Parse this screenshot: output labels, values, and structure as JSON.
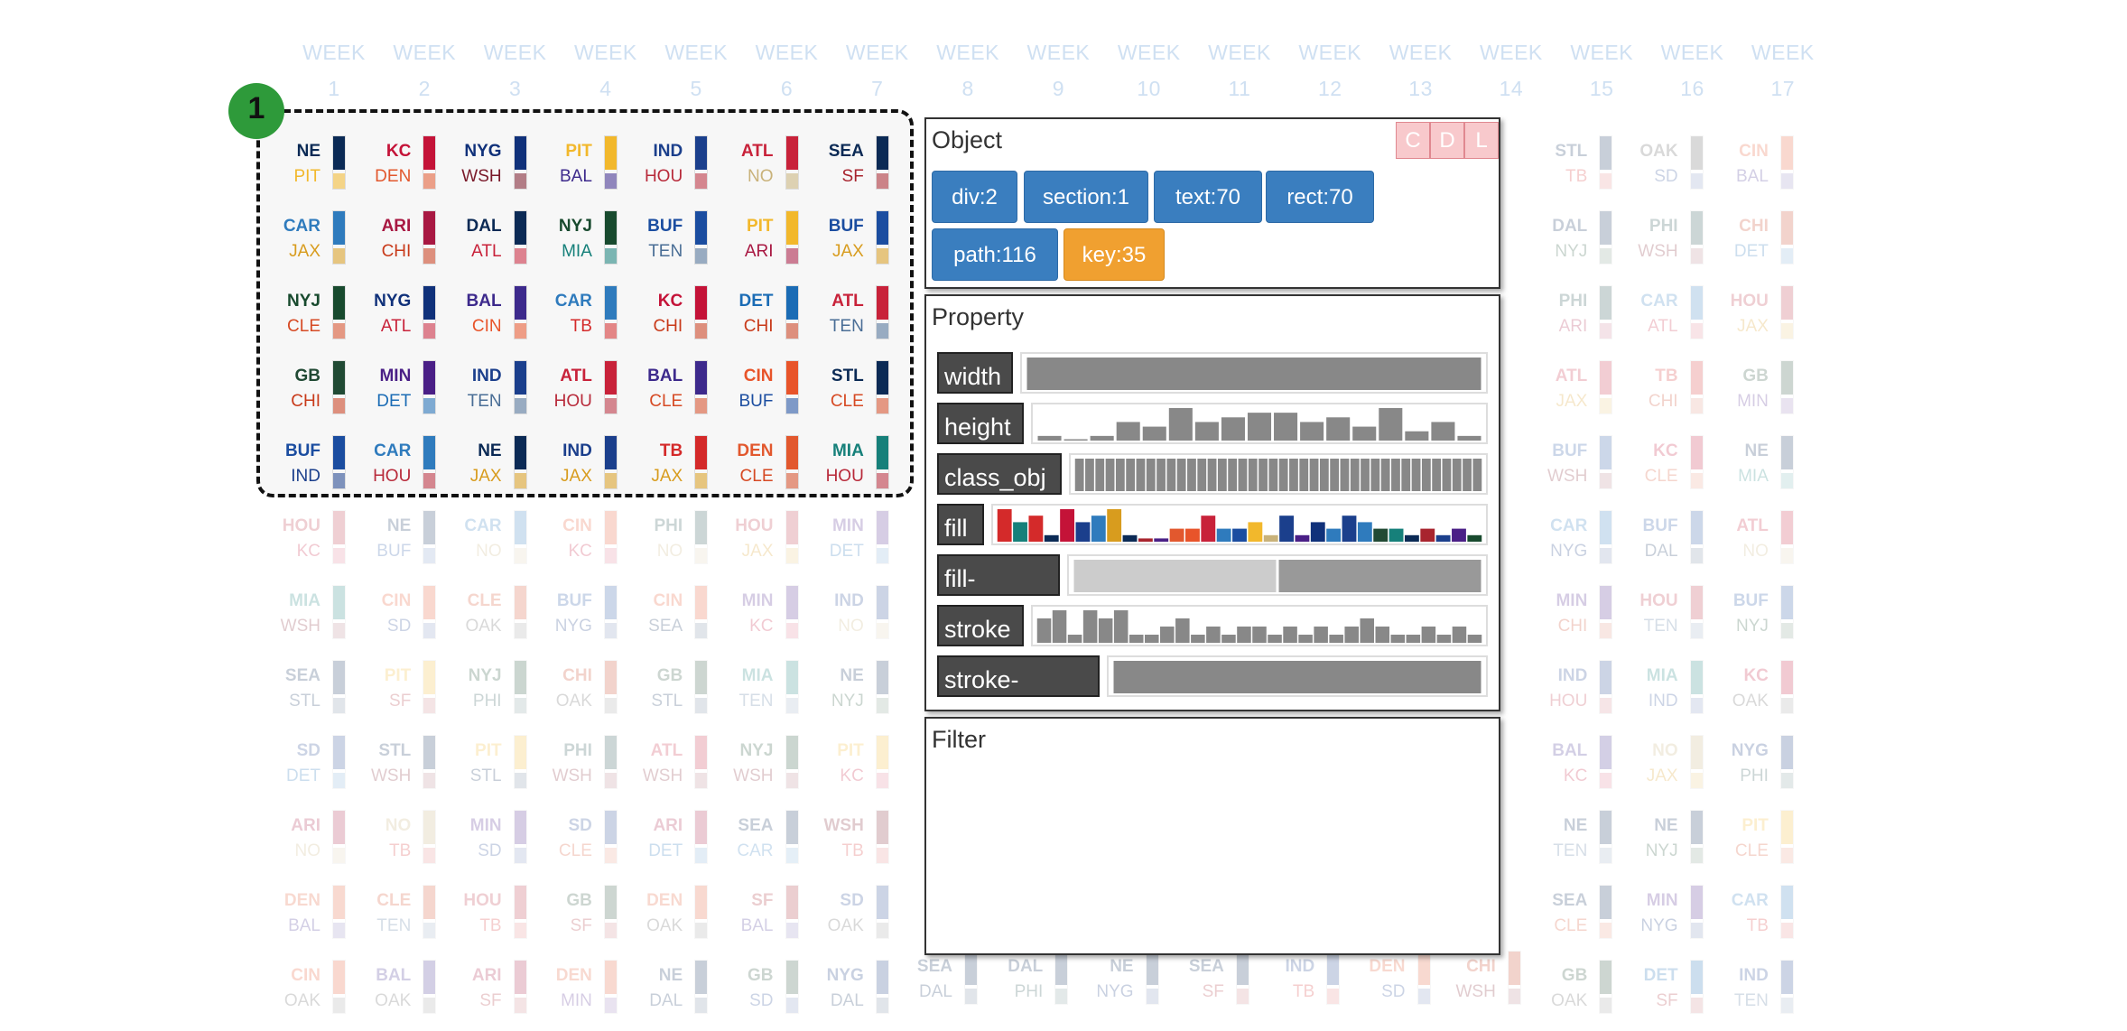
{
  "weeks": [
    {
      "label": "WEEK",
      "num": "1"
    },
    {
      "label": "WEEK",
      "num": "2"
    },
    {
      "label": "WEEK",
      "num": "3"
    },
    {
      "label": "WEEK",
      "num": "4"
    },
    {
      "label": "WEEK",
      "num": "5"
    },
    {
      "label": "WEEK",
      "num": "6"
    },
    {
      "label": "WEEK",
      "num": "7"
    },
    {
      "label": "WEEK",
      "num": "8"
    },
    {
      "label": "WEEK",
      "num": "9"
    },
    {
      "label": "WEEK",
      "num": "10"
    },
    {
      "label": "WEEK",
      "num": "11"
    },
    {
      "label": "WEEK",
      "num": "12"
    },
    {
      "label": "WEEK",
      "num": "13"
    },
    {
      "label": "WEEK",
      "num": "14"
    },
    {
      "label": "WEEK",
      "num": "15"
    },
    {
      "label": "WEEK",
      "num": "16"
    },
    {
      "label": "WEEK",
      "num": "17"
    }
  ],
  "team_colors": {
    "NE": "#0b2a55",
    "PIT": "#f2b82c",
    "KC": "#c41338",
    "DEN": "#e2582e",
    "NYG": "#10317a",
    "WSH": "#7a1a2a",
    "BAL": "#3d2a8c",
    "IND": "#1b3f8c",
    "HOU": "#b82a3a",
    "ATL": "#c8223a",
    "NO": "#c9b27a",
    "SEA": "#0b2a55",
    "SF": "#a8242e",
    "CAR": "#2f7bbd",
    "JAX": "#d89c1e",
    "ARI": "#a81842",
    "CHI": "#c83a1a",
    "DAL": "#0b2a55",
    "NYJ": "#184a2e",
    "MIA": "#16807a",
    "BUF": "#1b4da0",
    "TEN": "#4a6e96",
    "CLE": "#d64a24",
    "CIN": "#e8542a",
    "TB": "#d42a2a",
    "DET": "#1b6cb5",
    "GB": "#214a34",
    "MIN": "#4a1f86",
    "STL": "#0b2a55",
    "OAK": "#555555",
    "SD": "#1b3f8c",
    "PHI": "#1d4a4a"
  },
  "selection_badge": "1",
  "selected_cells": [
    [
      [
        "NE",
        "PIT"
      ],
      [
        "KC",
        "DEN"
      ],
      [
        "NYG",
        "WSH"
      ],
      [
        "PIT",
        "BAL"
      ],
      [
        "IND",
        "HOU"
      ],
      [
        "ATL",
        "NO"
      ],
      [
        "SEA",
        "SF"
      ]
    ],
    [
      [
        "CAR",
        "JAX"
      ],
      [
        "ARI",
        "CHI"
      ],
      [
        "DAL",
        "ATL"
      ],
      [
        "NYJ",
        "MIA"
      ],
      [
        "BUF",
        "TEN"
      ],
      [
        "PIT",
        "ARI"
      ],
      [
        "BUF",
        "JAX"
      ]
    ],
    [
      [
        "NYJ",
        "CLE"
      ],
      [
        "NYG",
        "ATL"
      ],
      [
        "BAL",
        "CIN"
      ],
      [
        "CAR",
        "TB"
      ],
      [
        "KC",
        "CHI"
      ],
      [
        "DET",
        "CHI"
      ],
      [
        "ATL",
        "TEN"
      ]
    ],
    [
      [
        "GB",
        "CHI"
      ],
      [
        "MIN",
        "DET"
      ],
      [
        "IND",
        "TEN"
      ],
      [
        "ATL",
        "HOU"
      ],
      [
        "BAL",
        "CLE"
      ],
      [
        "CIN",
        "BUF"
      ],
      [
        "STL",
        "CLE"
      ]
    ],
    [
      [
        "BUF",
        "IND"
      ],
      [
        "CAR",
        "HOU"
      ],
      [
        "NE",
        "JAX"
      ],
      [
        "IND",
        "JAX"
      ],
      [
        "TB",
        "JAX"
      ],
      [
        "DEN",
        "CLE"
      ],
      [
        "MIA",
        "HOU"
      ]
    ]
  ],
  "faded_rows": [
    [
      [
        "HOU",
        "KC"
      ],
      [
        "NE",
        "BUF"
      ],
      [
        "CAR",
        "NO"
      ],
      [
        "CIN",
        "KC"
      ],
      [
        "PHI",
        "NO"
      ],
      [
        "HOU",
        "JAX"
      ],
      [
        "MIN",
        "DET"
      ]
    ],
    [
      [
        "MIA",
        "WSH"
      ],
      [
        "CIN",
        "SD"
      ],
      [
        "CLE",
        "OAK"
      ],
      [
        "BUF",
        "NYG"
      ],
      [
        "CIN",
        "SEA"
      ],
      [
        "MIN",
        "KC"
      ],
      [
        "IND",
        "NO"
      ]
    ],
    [
      [
        "SEA",
        "STL"
      ],
      [
        "PIT",
        "SF"
      ],
      [
        "NYJ",
        "PHI"
      ],
      [
        "CHI",
        "OAK"
      ],
      [
        "GB",
        "STL"
      ],
      [
        "MIA",
        "TEN"
      ],
      [
        "NE",
        "NYJ"
      ]
    ],
    [
      [
        "SD",
        "DET"
      ],
      [
        "STL",
        "WSH"
      ],
      [
        "PIT",
        "STL"
      ],
      [
        "PHI",
        "WSH"
      ],
      [
        "ATL",
        "WSH"
      ],
      [
        "NYJ",
        "WSH"
      ],
      [
        "PIT",
        "KC"
      ]
    ],
    [
      [
        "ARI",
        "NO"
      ],
      [
        "NO",
        "TB"
      ],
      [
        "MIN",
        "SD"
      ],
      [
        "SD",
        "CLE"
      ],
      [
        "ARI",
        "DET"
      ],
      [
        "SEA",
        "CAR"
      ],
      [
        "WSH",
        "TB"
      ]
    ],
    [
      [
        "DEN",
        "BAL"
      ],
      [
        "CLE",
        "TEN"
      ],
      [
        "HOU",
        "TB"
      ],
      [
        "GB",
        "SF"
      ],
      [
        "DEN",
        "OAK"
      ],
      [
        "SF",
        "BAL"
      ],
      [
        "SD",
        "OAK"
      ]
    ],
    [
      [
        "CIN",
        "OAK"
      ],
      [
        "BAL",
        "OAK"
      ],
      [
        "ARI",
        "SF"
      ],
      [
        "DEN",
        "MIN"
      ],
      [
        "NE",
        "DAL"
      ],
      [
        "GB",
        "SD"
      ],
      [
        "NYG",
        "DAL"
      ]
    ]
  ],
  "bottom_mid_row": [
    [
      "SEA",
      "DAL"
    ],
    [
      "DAL",
      "PHI"
    ],
    [
      "NE",
      "NYG"
    ],
    [
      "SEA",
      "SF"
    ],
    [
      "IND",
      "TB"
    ],
    [
      "DEN",
      "SD"
    ],
    [
      "CHI",
      "WSH"
    ]
  ],
  "right_columns": [
    [
      null,
      [
        "STL",
        "TB"
      ],
      [
        "OAK",
        "SD"
      ],
      [
        "CIN",
        "BAL"
      ]
    ],
    [
      null,
      [
        "DAL",
        "NYJ"
      ],
      [
        "PHI",
        "WSH"
      ],
      [
        "CHI",
        "DET"
      ]
    ],
    [
      null,
      [
        "PHI",
        "ARI"
      ],
      [
        "CAR",
        "ATL"
      ],
      [
        "HOU",
        "JAX"
      ]
    ],
    [
      null,
      [
        "ATL",
        "JAX"
      ],
      [
        "TB",
        "CHI"
      ],
      [
        "GB",
        "MIN"
      ]
    ],
    [
      null,
      [
        "BUF",
        "WSH"
      ],
      [
        "KC",
        "CLE"
      ],
      [
        "NE",
        "MIA"
      ]
    ],
    [
      null,
      [
        "CAR",
        "NYG"
      ],
      [
        "BUF",
        "DAL"
      ],
      [
        "ATL",
        "NO"
      ]
    ],
    [
      null,
      [
        "MIN",
        "CHI"
      ],
      [
        "HOU",
        "TEN"
      ],
      [
        "BUF",
        "NYJ"
      ]
    ],
    [
      null,
      [
        "IND",
        "HOU"
      ],
      [
        "MIA",
        "IND"
      ],
      [
        "KC",
        "OAK"
      ]
    ],
    [
      null,
      [
        "BAL",
        "KC"
      ],
      [
        "NO",
        "JAX"
      ],
      [
        "NYG",
        "PHI"
      ]
    ],
    [
      null,
      [
        "NE",
        "TEN"
      ],
      [
        "NE",
        "NYJ"
      ],
      [
        "PIT",
        "CLE"
      ]
    ],
    [
      null,
      [
        "SEA",
        "CLE"
      ],
      [
        "MIN",
        "NYG"
      ],
      [
        "CAR",
        "TB"
      ]
    ],
    [
      null,
      [
        "GB",
        "OAK"
      ],
      [
        "DET",
        "SF"
      ],
      [
        "IND",
        "TEN"
      ]
    ]
  ],
  "object_panel": {
    "title": "Object",
    "cdl": [
      "C",
      "D",
      "L"
    ],
    "buttons": [
      {
        "label": "div:2",
        "type": "normal"
      },
      {
        "label": "section:1",
        "type": "normal"
      },
      {
        "label": "text:70",
        "type": "normal"
      },
      {
        "label": "rect:70",
        "type": "normal"
      },
      {
        "label": "path:116",
        "type": "normal"
      },
      {
        "label": "key:35",
        "type": "key"
      }
    ]
  },
  "property_panel": {
    "title": "Property",
    "rows": [
      {
        "label": "width",
        "bars": [
          1
        ],
        "colors": null
      },
      {
        "label": "height",
        "bars": [
          1,
          0,
          1,
          4,
          3,
          7,
          4,
          5,
          6,
          6,
          4,
          5,
          3,
          7,
          2,
          4,
          1
        ],
        "colors": null
      },
      {
        "label": "class_obj",
        "bars": [
          6,
          6,
          6,
          6,
          6,
          6,
          6,
          6,
          6,
          6,
          6,
          6,
          6,
          6,
          6,
          6,
          6,
          6,
          6,
          6,
          6,
          6,
          6,
          6,
          6,
          6,
          6,
          6,
          6,
          6,
          6,
          6,
          6,
          6,
          6,
          6,
          6,
          6,
          6,
          6
        ],
        "colors": null
      },
      {
        "label": "fill",
        "bars": [
          5,
          3,
          4,
          1,
          5,
          3,
          4,
          5,
          1,
          0.5,
          0.5,
          2,
          2,
          4,
          2,
          2,
          3,
          1,
          4,
          1,
          3,
          2,
          4,
          3,
          2,
          2,
          1,
          2,
          1,
          2,
          1
        ],
        "colors": [
          "#d42a2a",
          "#16807a",
          "#d42a2a",
          "#0b2a55",
          "#c41338",
          "#1b3f8c",
          "#2f7bbd",
          "#d89c1e",
          "#0b2a55",
          "#a8242e",
          "#4a1f86",
          "#e2582e",
          "#e8542a",
          "#c8223a",
          "#2f7bbd",
          "#1b4da0",
          "#f2b82c",
          "#c9b27a",
          "#1b3f8c",
          "#4a1f86",
          "#10317a",
          "#2f7bbd",
          "#1b3f8c",
          "#2f7bbd",
          "#214a34",
          "#16807a",
          "#0b2a55",
          "#a8242e",
          "#1b3f8c",
          "#4a1f86",
          "#184a2e"
        ]
      },
      {
        "label": "fill-opacity",
        "bars": [
          5,
          5
        ],
        "colors": [
          "#cccccc",
          "#999999"
        ]
      },
      {
        "label": "stroke",
        "bars": [
          3,
          4,
          1,
          4,
          3,
          4,
          1,
          1,
          2,
          3,
          1,
          2,
          1,
          2,
          2,
          1,
          2,
          1,
          2,
          1,
          2,
          3,
          2,
          1,
          1,
          2,
          1,
          2,
          1
        ],
        "colors": null
      },
      {
        "label": "stroke-",
        "bars": [
          1
        ],
        "colors": null
      }
    ]
  },
  "filter_panel": {
    "title": "Filter"
  }
}
